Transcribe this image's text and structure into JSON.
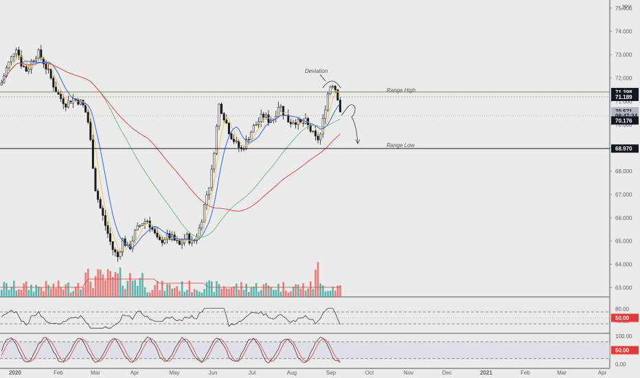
{
  "chart_data": {
    "type": "candlestick",
    "currency": "JPY",
    "y_ticks": [
      "75.000",
      "74.000",
      "73.000",
      "72.000",
      "71.000",
      "70.000",
      "69.000",
      "68.000",
      "67.000",
      "66.000",
      "65.000",
      "64.000",
      "63.000"
    ],
    "x_ticks": [
      "2020",
      "Feb",
      "Mar",
      "Apr",
      "May",
      "Jun",
      "Jul",
      "Aug",
      "Sep",
      "Oct",
      "Nov",
      "Dec",
      "2021",
      "Feb",
      "Mar",
      "Apr"
    ],
    "price_tags": [
      {
        "label": "71.398",
        "value": 71.398,
        "style": "dark"
      },
      {
        "label": "71.189",
        "value": 71.189,
        "style": "dark"
      },
      {
        "label": "70.571",
        "value": 70.571,
        "style": "grey"
      },
      {
        "label": "08:47:34",
        "value": 70.38,
        "style": "grey"
      },
      {
        "label": "70.176",
        "value": 70.176,
        "style": "dark"
      },
      {
        "label": "68.970",
        "value": 68.97,
        "style": "dark"
      }
    ],
    "levels": [
      {
        "name": "Range High",
        "value": 71.398
      },
      {
        "name": "Range Low",
        "value": 68.97
      }
    ],
    "annotations": [
      "Deviation",
      "Range High",
      "Range Low"
    ],
    "monthly_closes": [
      {
        "month": "2020",
        "value": 72.6
      },
      {
        "month": "Feb",
        "value": 71.0
      },
      {
        "month": "Mar",
        "value": 66.0
      },
      {
        "month": "Apr",
        "value": 65.2
      },
      {
        "month": "May",
        "value": 64.8
      },
      {
        "month": "Jun",
        "value": 70.6
      },
      {
        "month": "Jul",
        "value": 69.2
      },
      {
        "month": "Aug",
        "value": 70.3
      },
      {
        "month": "Sep",
        "value": 70.4
      }
    ],
    "rsi_panel": {
      "ticks": [
        "80.00",
        "40.00"
      ],
      "tag": "50.00"
    },
    "stoch_panel": {
      "ticks": [
        "100.00",
        "0.00"
      ],
      "tag": "50.00"
    }
  },
  "colors": {
    "up": "#26a69a",
    "down": "#ef5350",
    "ema_blue": "#2962ff",
    "ema_yellow": "#f2c94c",
    "sma_green": "#66bb6a",
    "sma_red": "#e53935",
    "level": "#4caf50"
  }
}
